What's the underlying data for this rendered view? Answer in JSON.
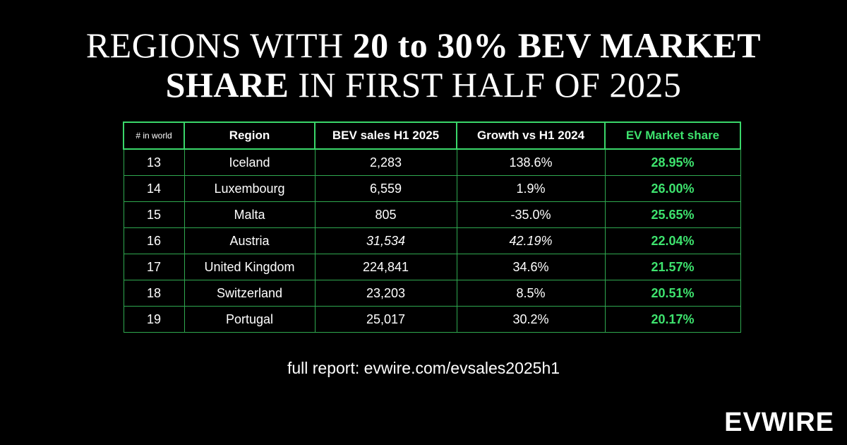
{
  "title": {
    "part1": "REGIONS WITH ",
    "bold": "20 to 30% BEV MARKET",
    "line2_bold": "SHARE",
    "line2_rest": " IN FIRST HALF OF 2025"
  },
  "table": {
    "headers": [
      "# in world",
      "Region",
      "BEV sales H1 2025",
      "Growth vs H1 2024",
      "EV Market share"
    ],
    "rows": [
      {
        "rank": "13",
        "region": "Iceland",
        "sales": "2,283",
        "growth": "138.6%",
        "share": "28.95%"
      },
      {
        "rank": "14",
        "region": "Luxembourg",
        "sales": "6,559",
        "growth": "1.9%",
        "share": "26.00%"
      },
      {
        "rank": "15",
        "region": "Malta",
        "sales": "805",
        "growth": "-35.0%",
        "share": "25.65%"
      },
      {
        "rank": "16",
        "region": "Austria",
        "sales": "31,534",
        "growth": "42.19%",
        "share": "22.04%"
      },
      {
        "rank": "17",
        "region": "United Kingdom",
        "sales": "224,841",
        "growth": "34.6%",
        "share": "21.57%"
      },
      {
        "rank": "18",
        "region": "Switzerland",
        "sales": "23,203",
        "growth": "8.5%",
        "share": "20.51%"
      },
      {
        "rank": "19",
        "region": "Portugal",
        "sales": "25,017",
        "growth": "30.2%",
        "share": "20.17%"
      }
    ]
  },
  "report_text": "full report: evwire.com/evsales2025h1",
  "logo": "EVWIRE",
  "colors": {
    "background": "#000000",
    "accent_green": "#3ee36e",
    "border_green": "#2fa84f"
  }
}
